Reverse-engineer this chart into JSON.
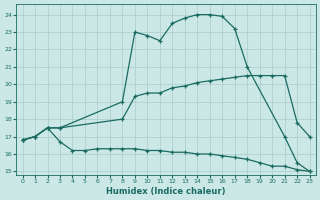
{
  "xlabel": "Humidex (Indice chaleur)",
  "bg_color": "#cce8e6",
  "line_color": "#1a6b62",
  "grid_color": "#aaccca",
  "xlim": [
    -0.5,
    23.5
  ],
  "ylim": [
    14.8,
    24.6
  ],
  "yticks": [
    15,
    16,
    17,
    18,
    19,
    20,
    21,
    22,
    23,
    24
  ],
  "xticks": [
    0,
    1,
    2,
    3,
    4,
    5,
    6,
    7,
    8,
    9,
    10,
    11,
    12,
    13,
    14,
    15,
    16,
    17,
    18,
    19,
    20,
    21,
    22,
    23
  ],
  "line_max_x": [
    0,
    1,
    2,
    3,
    8,
    9,
    10,
    11,
    12,
    13,
    14,
    15,
    16,
    17,
    18,
    21,
    22,
    23
  ],
  "line_max_y": [
    16.8,
    17.0,
    17.5,
    17.5,
    19.0,
    23.0,
    22.8,
    22.5,
    23.5,
    23.8,
    24.0,
    24.0,
    23.9,
    23.2,
    21.0,
    17.0,
    15.5,
    15.0
  ],
  "line_mid_x": [
    0,
    1,
    2,
    3,
    8,
    9,
    10,
    11,
    12,
    13,
    14,
    15,
    16,
    17,
    18,
    19,
    20,
    21,
    22,
    23
  ],
  "line_mid_y": [
    16.8,
    17.0,
    17.5,
    17.5,
    18.0,
    19.3,
    19.5,
    19.5,
    19.8,
    19.9,
    20.1,
    20.2,
    20.3,
    20.4,
    20.5,
    20.5,
    20.5,
    20.5,
    17.8,
    17.0
  ],
  "line_min_x": [
    0,
    1,
    2,
    3,
    4,
    5,
    6,
    7,
    8,
    9,
    10,
    11,
    12,
    13,
    14,
    15,
    16,
    17,
    18,
    19,
    20,
    21,
    22,
    23
  ],
  "line_min_y": [
    16.8,
    17.0,
    17.5,
    16.7,
    16.2,
    16.2,
    16.3,
    16.3,
    16.3,
    16.3,
    16.2,
    16.2,
    16.1,
    16.1,
    16.0,
    16.0,
    15.9,
    15.8,
    15.7,
    15.5,
    15.3,
    15.3,
    15.1,
    15.0
  ]
}
